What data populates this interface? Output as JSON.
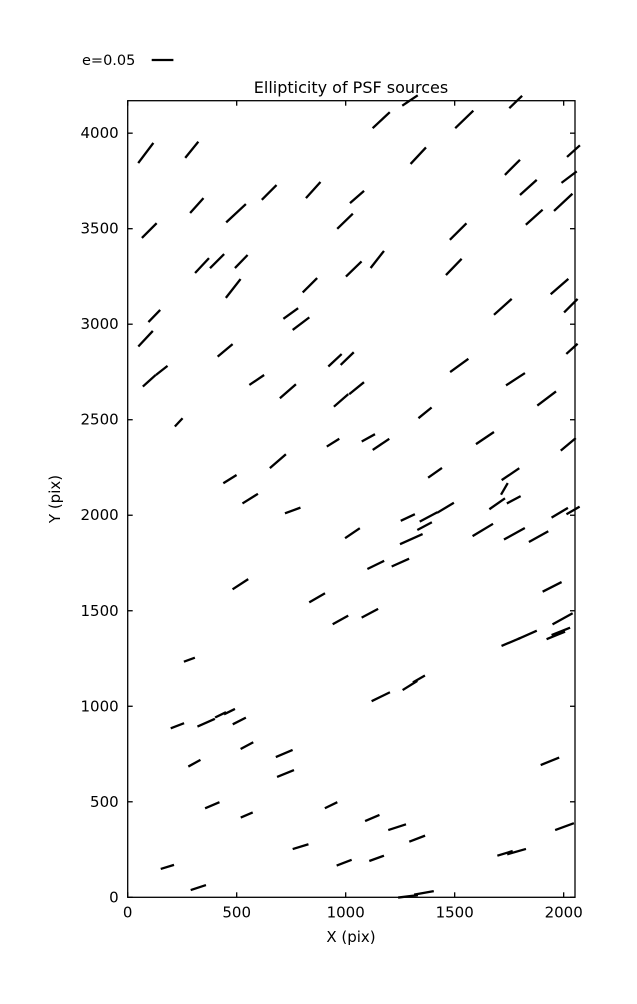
{
  "title": "Ellipticity of PSF sources",
  "legend": {
    "label": "e=0.05",
    "e_reference": 0.05
  },
  "axes": {
    "xlabel": "X (pix)",
    "ylabel": "Y (pix)",
    "xticks": [
      0,
      500,
      1000,
      1500,
      2000
    ],
    "yticks": [
      0,
      500,
      1000,
      1500,
      2000,
      2500,
      3000,
      3500,
      4000
    ],
    "xlim": [
      0,
      2052
    ],
    "ylim": [
      0,
      4170
    ]
  },
  "chart_data": {
    "type": "scatter",
    "title": "Ellipticity of PSF sources",
    "xlabel": "X (pix)",
    "ylabel": "Y (pix)",
    "legend_entry": "e=0.05",
    "marker": "line-whisker",
    "point_format": [
      "x_pix",
      "y_pix",
      "angle_deg_ccw",
      "ellipticity_e"
    ],
    "points": [
      [
        83,
        3896,
        53,
        0.058
      ],
      [
        294,
        3913,
        51,
        0.048
      ],
      [
        317,
        3621,
        48,
        0.046
      ],
      [
        497,
        3581,
        43,
        0.062
      ],
      [
        649,
        3690,
        45,
        0.048
      ],
      [
        99,
        3490,
        45,
        0.048
      ],
      [
        341,
        3307,
        47,
        0.047
      ],
      [
        410,
        3330,
        45,
        0.046
      ],
      [
        521,
        3328,
        46,
        0.042
      ],
      [
        484,
        3187,
        52,
        0.055
      ],
      [
        1295,
        4171,
        34,
        0.043
      ],
      [
        1163,
        4068,
        43,
        0.054
      ],
      [
        1333,
        3882,
        47,
        0.052
      ],
      [
        851,
        3702,
        48,
        0.05
      ],
      [
        1052,
        3666,
        41,
        0.043
      ],
      [
        997,
        3539,
        44,
        0.05
      ],
      [
        1145,
        3339,
        52,
        0.05
      ],
      [
        1037,
        3289,
        44,
        0.05
      ],
      [
        836,
        3204,
        45,
        0.047
      ],
      [
        1780,
        4163,
        44,
        0.041
      ],
      [
        1544,
        4072,
        44,
        0.058
      ],
      [
        1765,
        3821,
        45,
        0.049
      ],
      [
        2045,
        3906,
        42,
        0.04
      ],
      [
        2025,
        3770,
        37,
        0.044
      ],
      [
        1838,
        3716,
        42,
        0.052
      ],
      [
        1998,
        3638,
        43,
        0.058
      ],
      [
        1865,
        3560,
        42,
        0.052
      ],
      [
        1516,
        3485,
        45,
        0.054
      ],
      [
        1496,
        3300,
        46,
        0.052
      ],
      [
        1981,
        3197,
        41,
        0.054
      ],
      [
        122,
        3043,
        46,
        0.039
      ],
      [
        82,
        2924,
        47,
        0.049
      ],
      [
        99,
        2704,
        42,
        0.04
      ],
      [
        156,
        2758,
        38,
        0.034
      ],
      [
        447,
        2863,
        40,
        0.045
      ],
      [
        592,
        2708,
        34,
        0.041
      ],
      [
        234,
        2486,
        47,
        0.026
      ],
      [
        689,
        2283,
        41,
        0.049
      ],
      [
        469,
        2189,
        32,
        0.036
      ],
      [
        748,
        3056,
        36,
        0.042
      ],
      [
        795,
        3003,
        37,
        0.048
      ],
      [
        951,
        2811,
        43,
        0.042
      ],
      [
        1007,
        2820,
        44,
        0.042
      ],
      [
        735,
        2649,
        41,
        0.049
      ],
      [
        979,
        2601,
        41,
        0.044
      ],
      [
        1050,
        2665,
        39,
        0.044
      ],
      [
        1364,
        2536,
        39,
        0.039
      ],
      [
        942,
        2380,
        32,
        0.034
      ],
      [
        1104,
        2405,
        29,
        0.035
      ],
      [
        1162,
        2371,
        34,
        0.046
      ],
      [
        1410,
        2222,
        35,
        0.039
      ],
      [
        1721,
        3091,
        42,
        0.055
      ],
      [
        2033,
        3097,
        45,
        0.044
      ],
      [
        2038,
        2871,
        42,
        0.035
      ],
      [
        1521,
        2784,
        36,
        0.052
      ],
      [
        1779,
        2712,
        33,
        0.052
      ],
      [
        1922,
        2611,
        37,
        0.054
      ],
      [
        1639,
        2404,
        34,
        0.05
      ],
      [
        2021,
        2371,
        40,
        0.045
      ],
      [
        1756,
        2215,
        34,
        0.049
      ],
      [
        562,
        2087,
        32,
        0.042
      ],
      [
        517,
        1639,
        33,
        0.043
      ],
      [
        283,
        1244,
        20,
        0.027
      ],
      [
        757,
        2025,
        20,
        0.038
      ],
      [
        1031,
        1906,
        34,
        0.041
      ],
      [
        1285,
        1988,
        25,
        0.036
      ],
      [
        1380,
        1991,
        28,
        0.046
      ],
      [
        1458,
        2039,
        31,
        0.045
      ],
      [
        1362,
        1943,
        28,
        0.038
      ],
      [
        1301,
        1875,
        24,
        0.057
      ],
      [
        1138,
        1740,
        26,
        0.043
      ],
      [
        1251,
        1752,
        24,
        0.044
      ],
      [
        869,
        1568,
        30,
        0.042
      ],
      [
        976,
        1452,
        29,
        0.041
      ],
      [
        1111,
        1487,
        28,
        0.043
      ],
      [
        1295,
        1109,
        32,
        0.04
      ],
      [
        1695,
        2060,
        35,
        0.044
      ],
      [
        1728,
        2138,
        60,
        0.031
      ],
      [
        1771,
        2081,
        28,
        0.036
      ],
      [
        1982,
        2013,
        31,
        0.044
      ],
      [
        2043,
        2025,
        30,
        0.035
      ],
      [
        1629,
        1923,
        31,
        0.055
      ],
      [
        1774,
        1903,
        29,
        0.055
      ],
      [
        1885,
        1888,
        29,
        0.051
      ],
      [
        1947,
        1625,
        27,
        0.049
      ],
      [
        1995,
        1458,
        29,
        0.053
      ],
      [
        1757,
        1336,
        23,
        0.046
      ],
      [
        1834,
        1374,
        24,
        0.047
      ],
      [
        1964,
        1371,
        22,
        0.046
      ],
      [
        1987,
        1392,
        22,
        0.046
      ],
      [
        1336,
        1143,
        30,
        0.032
      ],
      [
        228,
        898,
        21,
        0.033
      ],
      [
        360,
        914,
        24,
        0.044
      ],
      [
        426,
        955,
        26,
        0.028
      ],
      [
        467,
        972,
        26,
        0.028
      ],
      [
        512,
        923,
        27,
        0.034
      ],
      [
        547,
        794,
        28,
        0.033
      ],
      [
        306,
        702,
        29,
        0.032
      ],
      [
        388,
        482,
        23,
        0.036
      ],
      [
        546,
        431,
        23,
        0.03
      ],
      [
        182,
        159,
        17,
        0.032
      ],
      [
        324,
        51,
        18,
        0.037
      ],
      [
        1161,
        1050,
        26,
        0.047
      ],
      [
        718,
        753,
        23,
        0.042
      ],
      [
        724,
        648,
        22,
        0.042
      ],
      [
        933,
        482,
        26,
        0.032
      ],
      [
        1122,
        415,
        23,
        0.036
      ],
      [
        1236,
        367,
        18,
        0.043
      ],
      [
        1328,
        307,
        21,
        0.039
      ],
      [
        793,
        265,
        17,
        0.038
      ],
      [
        993,
        181,
        21,
        0.037
      ],
      [
        1142,
        204,
        20,
        0.036
      ],
      [
        1286,
        5,
        7,
        0.046
      ],
      [
        1359,
        23,
        10,
        0.046
      ],
      [
        1937,
        712,
        22,
        0.046
      ],
      [
        2004,
        370,
        20,
        0.046
      ],
      [
        1731,
        230,
        17,
        0.037
      ],
      [
        1784,
        239,
        16,
        0.045
      ]
    ],
    "colors": {
      "whisker": "#000000",
      "background": "#ffffff"
    },
    "layout": {
      "grid": false,
      "legend_position": "top-left-outside",
      "ticks_direction": "in"
    }
  }
}
